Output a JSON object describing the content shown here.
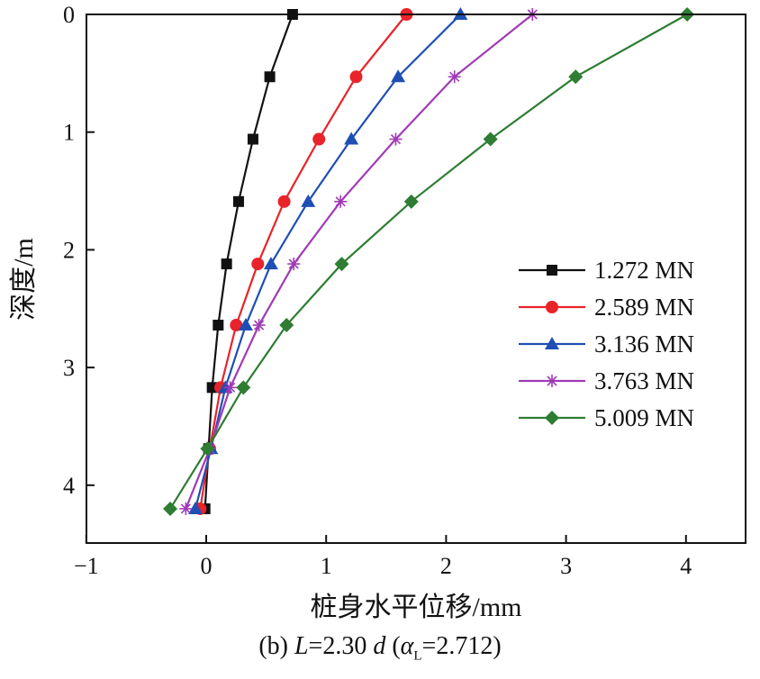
{
  "chart_data": {
    "type": "line",
    "xlabel": "桩身水平位移/mm",
    "ylabel": "深度/m",
    "xlim": [
      -1,
      4.5
    ],
    "ylim": [
      4.5,
      0
    ],
    "y_inverted": true,
    "x_ticks": [
      -1,
      0,
      1,
      2,
      3,
      4
    ],
    "x_tick_labels": [
      "−1",
      "0",
      "1",
      "2",
      "3",
      "4"
    ],
    "y_ticks": [
      0,
      1,
      2,
      3,
      4
    ],
    "y_tick_labels": [
      "0",
      "1",
      "2",
      "3",
      "4"
    ],
    "grid": false,
    "legend_position": "right-center",
    "depths": [
      0,
      0.53,
      1.06,
      1.59,
      2.12,
      2.64,
      3.17,
      3.69,
      4.2
    ],
    "series": [
      {
        "name": "1.272 MN",
        "color": "#111111",
        "marker": "square",
        "x": [
          0.72,
          0.53,
          0.39,
          0.27,
          0.17,
          0.1,
          0.05,
          0.02,
          -0.01
        ]
      },
      {
        "name": "2.589 MN",
        "color": "#e8232a",
        "marker": "circle",
        "x": [
          1.67,
          1.25,
          0.94,
          0.65,
          0.43,
          0.25,
          0.12,
          0.03,
          -0.05
        ]
      },
      {
        "name": "3.136 MN",
        "color": "#1f4fb4",
        "marker": "triangle",
        "x": [
          2.12,
          1.6,
          1.21,
          0.85,
          0.54,
          0.33,
          0.16,
          0.04,
          -0.09
        ]
      },
      {
        "name": "3.763 MN",
        "color": "#a03ab5",
        "marker": "star",
        "x": [
          2.72,
          2.07,
          1.58,
          1.12,
          0.73,
          0.44,
          0.2,
          0.03,
          -0.17
        ]
      },
      {
        "name": "5.009 MN",
        "color": "#2e7d32",
        "marker": "diamond",
        "x": [
          4.01,
          3.08,
          2.37,
          1.71,
          1.13,
          0.67,
          0.31,
          0.01,
          -0.3
        ]
      }
    ]
  },
  "caption": {
    "prefix": "(b) ",
    "L": "L",
    "mid": "=2.30 ",
    "d": "d",
    "open": " (",
    "alpha": "α",
    "alpha_sub": "L",
    "value": "=2.712)"
  }
}
